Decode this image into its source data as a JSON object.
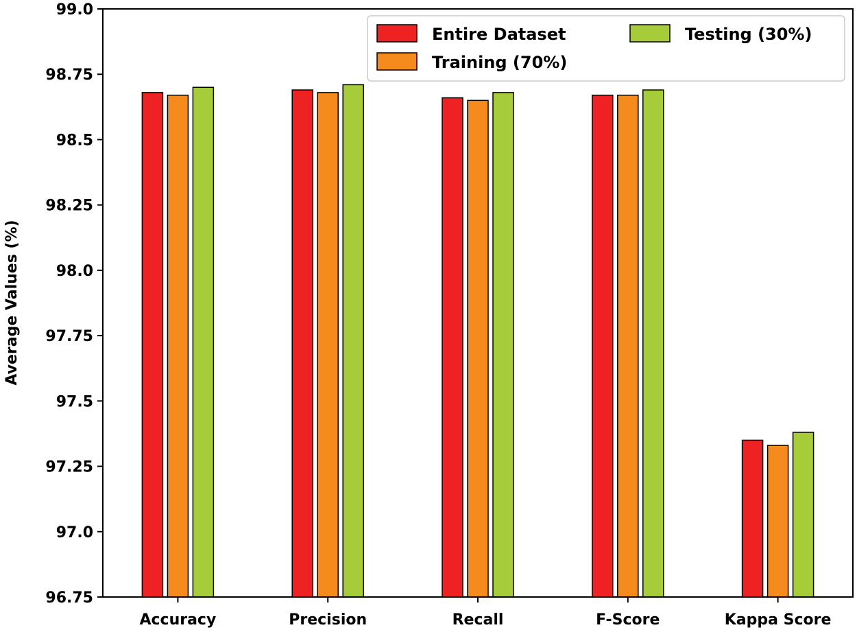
{
  "chart_data": {
    "type": "bar",
    "categories": [
      "Accuracy",
      "Precision",
      "Recall",
      "F-Score",
      "Kappa Score"
    ],
    "series": [
      {
        "name": "Entire Dataset",
        "color": "#ee2222",
        "values": [
          98.68,
          98.69,
          98.66,
          98.67,
          97.35
        ]
      },
      {
        "name": "Training (70%)",
        "color": "#f58b1c",
        "values": [
          98.67,
          98.68,
          98.65,
          98.67,
          97.33
        ]
      },
      {
        "name": "Testing (30%)",
        "color": "#a6cc3a",
        "values": [
          98.7,
          98.71,
          98.68,
          98.69,
          97.38
        ]
      }
    ],
    "ylabel": "Average Values (%)",
    "xlabel": "",
    "title": "",
    "ylim": [
      96.75,
      99.0
    ],
    "yticks": [
      96.75,
      97.0,
      97.25,
      97.5,
      97.75,
      98.0,
      98.25,
      98.5,
      98.75,
      99.0
    ],
    "ytick_labels": [
      "96.75",
      "97.0",
      "97.25",
      "97.5",
      "97.75",
      "98.0",
      "98.25",
      "98.5",
      "98.75",
      "99.0"
    ],
    "grid": false,
    "legend_position": "top-right"
  }
}
